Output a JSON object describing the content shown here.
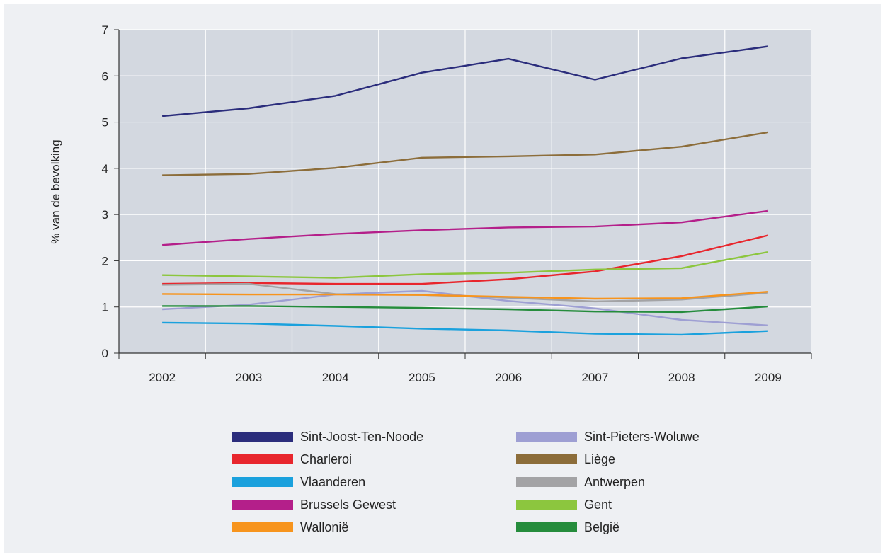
{
  "chart_data": {
    "type": "line",
    "title": "",
    "xlabel": "",
    "ylabel": "% van de bevolking",
    "x": [
      "2002",
      "2003",
      "2004",
      "2005",
      "2006",
      "2007",
      "2008",
      "2009"
    ],
    "ylim": [
      0,
      7
    ],
    "yticks": [
      "0",
      "1",
      "2",
      "3",
      "4",
      "5",
      "6",
      "7"
    ],
    "grid": true,
    "legend_position": "bottom",
    "plot_background": "#d3d8e0",
    "series": [
      {
        "name": "Sint-Joost-Ten-Noode",
        "color": "#2b2d7c",
        "values": [
          5.13,
          5.3,
          5.57,
          6.07,
          6.37,
          5.92,
          6.38,
          6.64
        ]
      },
      {
        "name": "Sint-Pieters-Woluwe",
        "color": "#9e9fd3",
        "values": [
          0.95,
          1.05,
          1.27,
          1.35,
          1.13,
          0.97,
          0.72,
          0.6
        ]
      },
      {
        "name": "Charleroi",
        "color": "#e8262d",
        "values": [
          1.5,
          1.52,
          1.5,
          1.5,
          1.6,
          1.77,
          2.1,
          2.55
        ]
      },
      {
        "name": "Liège",
        "color": "#8c6d3a",
        "values": [
          3.85,
          3.88,
          4.01,
          4.23,
          4.26,
          4.3,
          4.47,
          4.78
        ]
      },
      {
        "name": "Vlaanderen",
        "color": "#1aa1dd",
        "values": [
          0.66,
          0.64,
          0.59,
          0.53,
          0.49,
          0.42,
          0.4,
          0.48
        ]
      },
      {
        "name": "Antwerpen",
        "color": "#a3a3a5",
        "values": [
          1.48,
          1.5,
          1.28,
          1.26,
          1.2,
          1.12,
          1.16,
          1.31
        ]
      },
      {
        "name": "Brussels Gewest",
        "color": "#b41f8a",
        "values": [
          2.34,
          2.47,
          2.58,
          2.66,
          2.72,
          2.74,
          2.83,
          3.08
        ]
      },
      {
        "name": "Gent",
        "color": "#8cc63e",
        "values": [
          1.69,
          1.66,
          1.63,
          1.71,
          1.74,
          1.81,
          1.84,
          2.19
        ]
      },
      {
        "name": "Wallonië",
        "color": "#f7941d",
        "values": [
          1.28,
          1.27,
          1.27,
          1.26,
          1.22,
          1.18,
          1.19,
          1.33
        ]
      },
      {
        "name": "België",
        "color": "#258c3c",
        "values": [
          1.02,
          1.02,
          1.0,
          0.98,
          0.95,
          0.9,
          0.89,
          1.01
        ]
      }
    ]
  }
}
